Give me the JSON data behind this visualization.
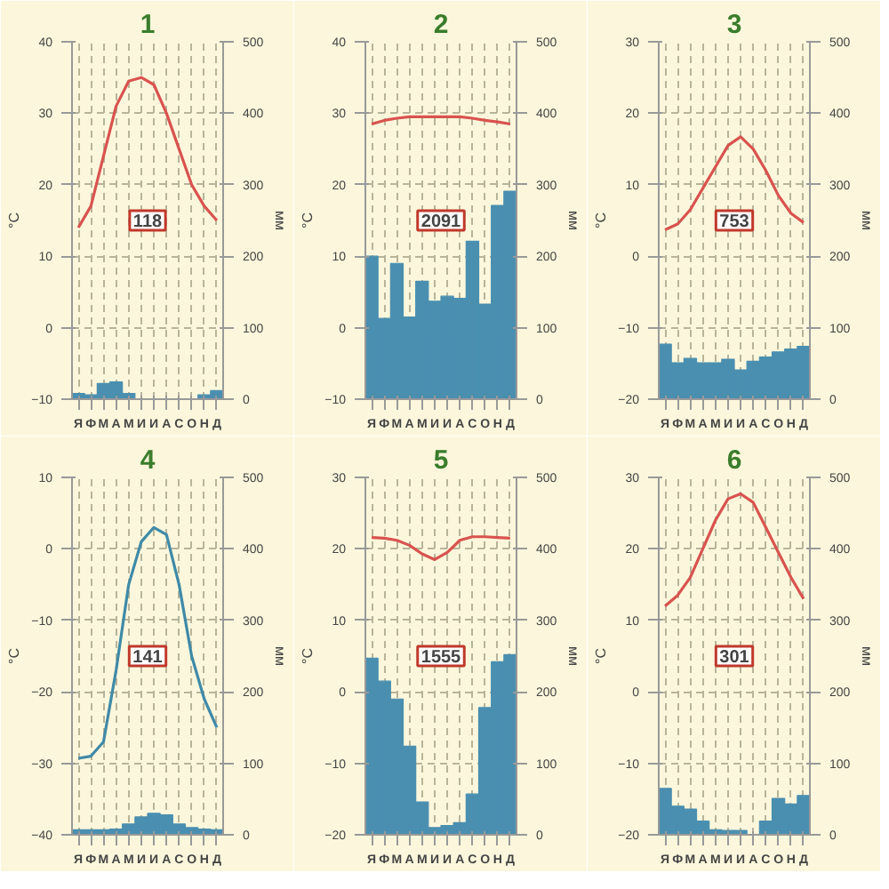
{
  "chart_data": [
    {
      "type": "bar",
      "title": "1",
      "ylabel": "°C",
      "y2label": "мм",
      "categories": [
        "Я",
        "Ф",
        "М",
        "А",
        "М",
        "И",
        "И",
        "А",
        "С",
        "О",
        "Н",
        "Д"
      ],
      "ylim": [
        -10,
        40
      ],
      "yticks": [
        -10,
        0,
        10,
        20,
        30,
        40
      ],
      "y2lim": [
        0,
        500
      ],
      "y2ticks": [
        0,
        100,
        200,
        300,
        400,
        500
      ],
      "grid": true,
      "annotations": [
        "118"
      ],
      "series": [
        {
          "axis": "y2",
          "color": "#4a8fb0",
          "values": [
            8,
            6,
            22,
            24,
            8,
            0,
            0,
            0,
            0,
            0,
            6,
            12
          ]
        },
        {
          "type": "line",
          "color": "#d9534f",
          "values": [
            14,
            17,
            24,
            31,
            34.5,
            35,
            34,
            30,
            25,
            20,
            17,
            15
          ]
        }
      ]
    },
    {
      "type": "bar",
      "title": "2",
      "ylabel": "°C",
      "y2label": "мм",
      "categories": [
        "Я",
        "Ф",
        "М",
        "А",
        "М",
        "И",
        "И",
        "А",
        "С",
        "О",
        "Н",
        "Д"
      ],
      "ylim": [
        -10,
        40
      ],
      "yticks": [
        -10,
        0,
        10,
        20,
        30,
        40
      ],
      "y2lim": [
        0,
        500
      ],
      "y2ticks": [
        0,
        100,
        200,
        300,
        400,
        500
      ],
      "grid": true,
      "annotations": [
        "2091"
      ],
      "series": [
        {
          "axis": "y2",
          "color": "#4a8fb0",
          "values": [
            200,
            113,
            190,
            115,
            165,
            137,
            144,
            141,
            221,
            133,
            271,
            291
          ]
        },
        {
          "type": "line",
          "color": "#d9534f",
          "values": [
            28.5,
            29,
            29.3,
            29.5,
            29.5,
            29.5,
            29.5,
            29.5,
            29.3,
            29,
            28.8,
            28.5
          ]
        }
      ]
    },
    {
      "type": "bar",
      "title": "3",
      "ylabel": "°C",
      "y2label": "мм",
      "categories": [
        "Я",
        "Ф",
        "М",
        "А",
        "М",
        "И",
        "И",
        "А",
        "С",
        "О",
        "Н",
        "Д"
      ],
      "ylim": [
        -20,
        30
      ],
      "yticks": [
        -20,
        -10,
        0,
        10,
        20,
        30
      ],
      "y2lim": [
        0,
        500
      ],
      "y2ticks": [
        0,
        100,
        200,
        300,
        400,
        500
      ],
      "grid": true,
      "annotations": [
        "753"
      ],
      "series": [
        {
          "axis": "y2",
          "color": "#4a8fb0",
          "values": [
            77,
            51,
            57,
            51,
            51,
            56,
            41,
            53,
            59,
            66,
            70,
            74
          ]
        },
        {
          "type": "line",
          "color": "#d9534f",
          "values": [
            3.7,
            4.5,
            6.5,
            9.5,
            12.5,
            15.5,
            16.7,
            15,
            12,
            8.5,
            6,
            4.7
          ]
        }
      ]
    },
    {
      "type": "bar",
      "title": "4",
      "ylabel": "°C",
      "y2label": "мм",
      "categories": [
        "Я",
        "Ф",
        "М",
        "А",
        "М",
        "И",
        "И",
        "А",
        "С",
        "О",
        "Н",
        "Д"
      ],
      "ylim": [
        -40,
        10
      ],
      "yticks": [
        -40,
        -30,
        -20,
        -10,
        0,
        10
      ],
      "y2lim": [
        0,
        500
      ],
      "y2ticks": [
        0,
        100,
        200,
        300,
        400,
        500
      ],
      "grid": true,
      "annotations": [
        "141"
      ],
      "series": [
        {
          "axis": "y2",
          "color": "#4a8fb0",
          "values": [
            7,
            7,
            7,
            8,
            15,
            25,
            30,
            28,
            15,
            10,
            8,
            7
          ]
        },
        {
          "type": "line",
          "color": "#3f8aa8",
          "values": [
            -29.3,
            -29,
            -27,
            -17,
            -5,
            1,
            3,
            2,
            -5,
            -15,
            -21,
            -25
          ]
        }
      ]
    },
    {
      "type": "bar",
      "title": "5",
      "ylabel": "°C",
      "y2label": "мм",
      "categories": [
        "Я",
        "Ф",
        "М",
        "А",
        "М",
        "И",
        "И",
        "А",
        "С",
        "О",
        "Н",
        "Д"
      ],
      "ylim": [
        -20,
        30
      ],
      "yticks": [
        -20,
        -10,
        0,
        10,
        20,
        30
      ],
      "y2lim": [
        0,
        500
      ],
      "y2ticks": [
        0,
        100,
        200,
        300,
        400,
        500
      ],
      "grid": true,
      "annotations": [
        "1555"
      ],
      "series": [
        {
          "axis": "y2",
          "color": "#4a8fb0",
          "values": [
            247,
            215,
            190,
            124,
            46,
            10,
            13,
            17,
            57,
            178,
            242,
            252
          ]
        },
        {
          "type": "line",
          "color": "#d9534f",
          "values": [
            21.6,
            21.5,
            21.2,
            20.5,
            19.3,
            18.5,
            19.5,
            21.2,
            21.7,
            21.7,
            21.6,
            21.5
          ]
        }
      ]
    },
    {
      "type": "bar",
      "title": "6",
      "ylabel": "°C",
      "y2label": "мм",
      "categories": [
        "Я",
        "Ф",
        "М",
        "А",
        "М",
        "И",
        "И",
        "А",
        "С",
        "О",
        "Н",
        "Д"
      ],
      "ylim": [
        -20,
        30
      ],
      "yticks": [
        -20,
        -10,
        0,
        10,
        20,
        30
      ],
      "y2lim": [
        0,
        500
      ],
      "y2ticks": [
        0,
        100,
        200,
        300,
        400,
        500
      ],
      "grid": true,
      "annotations": [
        "301"
      ],
      "series": [
        {
          "axis": "y2",
          "color": "#4a8fb0",
          "values": [
            65,
            40,
            36,
            19,
            7,
            6,
            6,
            0,
            19,
            51,
            43,
            55
          ]
        },
        {
          "type": "line",
          "color": "#d9534f",
          "values": [
            12,
            13.5,
            16,
            20,
            24,
            27,
            27.7,
            26.5,
            23,
            19.5,
            16,
            13
          ]
        }
      ]
    }
  ]
}
